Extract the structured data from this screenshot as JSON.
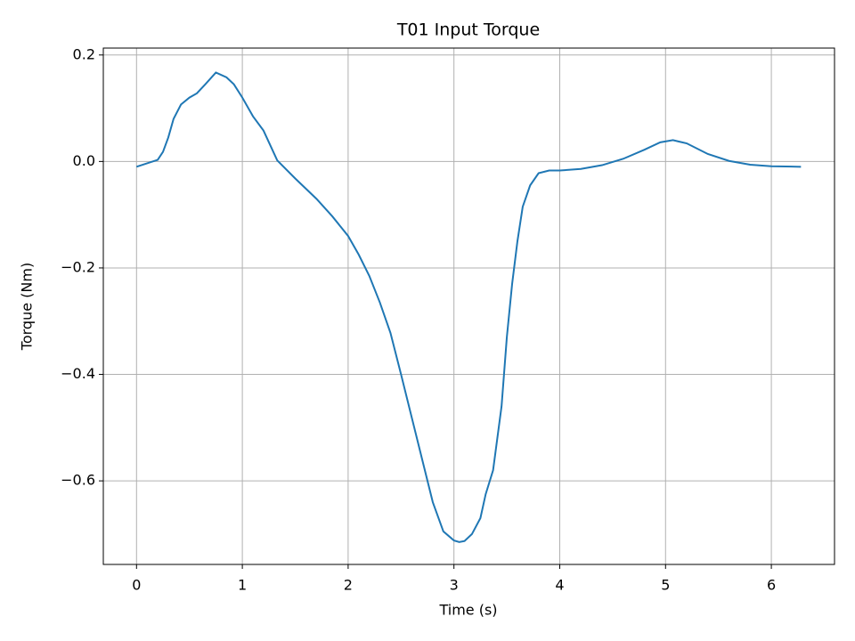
{
  "chart_data": {
    "type": "line",
    "title": "T01 Input Torque",
    "x_label": "Time (s)",
    "y_label": "Torque (Nm)",
    "x": [
      0,
      0.2,
      0.25,
      0.3,
      0.35,
      0.42,
      0.5,
      0.57,
      0.65,
      0.75,
      0.85,
      0.92,
      1.0,
      1.1,
      1.2,
      1.33,
      1.5,
      1.7,
      1.85,
      2.0,
      2.1,
      2.2,
      2.3,
      2.4,
      2.5,
      2.6,
      2.7,
      2.8,
      2.9,
      3.0,
      3.05,
      3.1,
      3.17,
      3.25,
      3.3,
      3.37,
      3.45,
      3.5,
      3.55,
      3.6,
      3.65,
      3.72,
      3.8,
      3.9,
      4.0,
      4.2,
      4.4,
      4.6,
      4.8,
      4.95,
      5.07,
      5.2,
      5.4,
      5.6,
      5.8,
      6.0,
      6.28
    ],
    "series": [
      {
        "name": "T01",
        "color": "#1f77b4",
        "values": [
          -0.01,
          0.003,
          0.018,
          0.045,
          0.08,
          0.107,
          0.12,
          0.128,
          0.145,
          0.167,
          0.158,
          0.145,
          0.12,
          0.085,
          0.058,
          0.002,
          -0.032,
          -0.07,
          -0.103,
          -0.14,
          -0.175,
          -0.215,
          -0.265,
          -0.322,
          -0.4,
          -0.48,
          -0.56,
          -0.64,
          -0.695,
          -0.712,
          -0.715,
          -0.713,
          -0.7,
          -0.67,
          -0.625,
          -0.58,
          -0.46,
          -0.33,
          -0.23,
          -0.15,
          -0.085,
          -0.045,
          -0.022,
          -0.017,
          -0.017,
          -0.014,
          -0.007,
          0.005,
          0.022,
          0.036,
          0.04,
          0.034,
          0.014,
          0.001,
          -0.006,
          -0.009,
          -0.01
        ]
      }
    ],
    "xlim": [
      -0.314,
      6.597
    ],
    "ylim": [
      -0.757,
      0.213
    ],
    "xticks": [
      0,
      1,
      2,
      3,
      4,
      5,
      6
    ],
    "yticks": [
      {
        "value": -0.6,
        "label": "−0.6"
      },
      {
        "value": -0.4,
        "label": "−0.4"
      },
      {
        "value": -0.2,
        "label": "−0.2"
      },
      {
        "value": 0,
        "label": "0.0"
      },
      0.2
    ],
    "grid": true
  }
}
